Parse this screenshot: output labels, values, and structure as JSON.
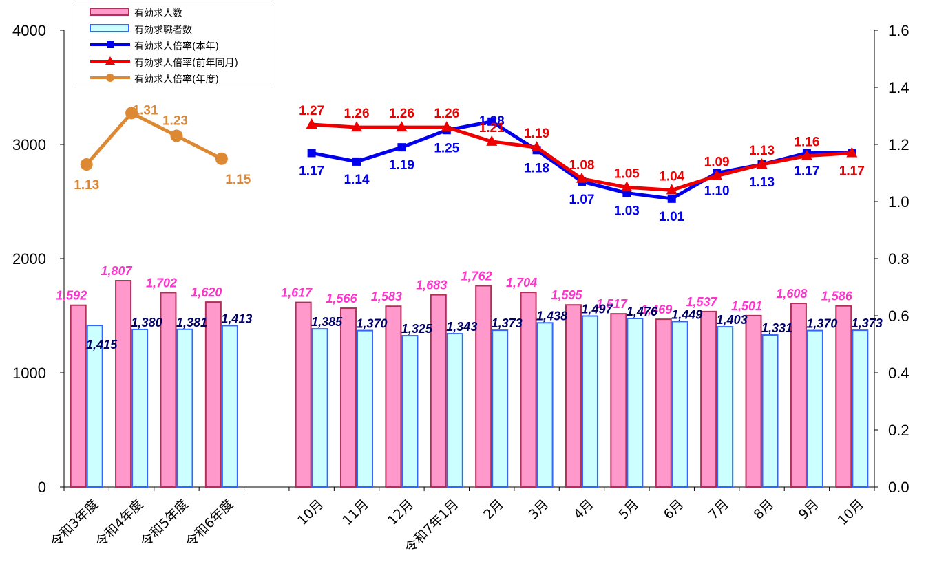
{
  "chart_data": {
    "type": "bar",
    "categories": [
      "令和3年度",
      "令和4年度",
      "令和5年度",
      "令和6年度",
      "",
      "10月",
      "11月",
      "12月",
      "令和7年1月",
      "2月",
      "3月",
      "4月",
      "5月",
      "6月",
      "7月",
      "8月",
      "9月",
      "10月"
    ],
    "y_left": {
      "ticks": [
        "0",
        "1000",
        "2000",
        "3000",
        "4000"
      ],
      "min": 0,
      "max": 4000
    },
    "y_right": {
      "ticks": [
        "0.0",
        "0.2",
        "0.4",
        "0.6",
        "0.8",
        "1.0",
        "1.2",
        "1.4",
        "1.6"
      ],
      "min": 0,
      "max": 1.6
    },
    "bars": [
      {
        "name": "有効求人数",
        "color": "#ff99cc",
        "stroke": "#b0305a",
        "values": [
          1592,
          1807,
          1702,
          1620,
          null,
          1617,
          1566,
          1583,
          1683,
          1762,
          1704,
          1595,
          1517,
          1469,
          1537,
          1501,
          1608,
          1586
        ],
        "labels": [
          "1,592",
          "1,807",
          "1,702",
          "1,620",
          "",
          "1,617",
          "1,566",
          "1,583",
          "1,683",
          "1,762",
          "1,704",
          "1,595",
          "1,517",
          "1,469",
          "1,537",
          "1,501",
          "1,608",
          "1,586"
        ],
        "label_color": "#ff33cc"
      },
      {
        "name": "有効求職者数",
        "color": "#ccffff",
        "stroke": "#3366ff",
        "values": [
          1415,
          1380,
          1381,
          1413,
          null,
          1385,
          1370,
          1325,
          1343,
          1373,
          1438,
          1497,
          1476,
          1449,
          1403,
          1331,
          1370,
          1373
        ],
        "labels": [
          "1,415",
          "1,380",
          "1,381",
          "1,413",
          "",
          "1,385",
          "1,370",
          "1,325",
          "1,343",
          "1,373",
          "1,438",
          "1,497",
          "1,476",
          "1,449",
          "1,403",
          "1,331",
          "1,370",
          "1,373"
        ],
        "label_color": "#000066"
      }
    ],
    "lines": [
      {
        "name": "有効求人倍率(本年)",
        "color": "#0000ee",
        "marker": "square",
        "values": [
          null,
          null,
          null,
          null,
          null,
          1.17,
          1.14,
          1.19,
          1.25,
          1.28,
          1.18,
          1.07,
          1.03,
          1.01,
          1.1,
          1.13,
          1.17,
          1.17
        ],
        "labels": [
          "",
          "",
          "",
          "",
          "",
          "1.17",
          "1.14",
          "1.19",
          "1.25",
          "1.28",
          "1.18",
          "1.07",
          "1.03",
          "1.01",
          "1.10",
          "1.13",
          "1.17",
          "1.17"
        ]
      },
      {
        "name": "有効求人倍率(前年同月)",
        "color": "#ee0000",
        "marker": "triangle",
        "values": [
          null,
          null,
          null,
          null,
          null,
          1.27,
          1.26,
          1.26,
          1.26,
          1.21,
          1.19,
          1.08,
          1.05,
          1.04,
          1.09,
          1.13,
          1.16,
          1.17
        ],
        "labels": [
          "",
          "",
          "",
          "",
          "",
          "1.27",
          "1.26",
          "1.26",
          "1.26",
          "1.21",
          "1.19",
          "1.08",
          "1.05",
          "1.04",
          "1.09",
          "1.13",
          "1.16",
          "1.17"
        ]
      },
      {
        "name": "有効求人倍率(年度)",
        "color": "#dd8833",
        "marker": "circle",
        "values": [
          1.13,
          1.31,
          1.23,
          1.15,
          null,
          null,
          null,
          null,
          null,
          null,
          null,
          null,
          null,
          null,
          null,
          null,
          null,
          null
        ],
        "labels": [
          "1.13",
          "1.31",
          "1.23",
          "1.15",
          "",
          "",
          "",
          "",
          "",
          "",
          "",
          "",
          "",
          "",
          "",
          "",
          "",
          ""
        ]
      }
    ],
    "legend": [
      "有効求人数",
      "有効求職者数",
      "有効求人倍率(本年)",
      "有効求人倍率(前年同月)",
      "有効求人倍率(年度)"
    ],
    "legend_position": "top-left",
    "grid": false
  }
}
